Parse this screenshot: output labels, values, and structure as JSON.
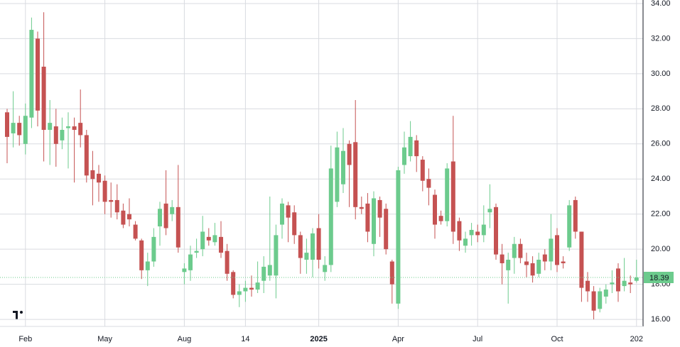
{
  "chart_data": {
    "type": "candlestick",
    "categories": [
      null,
      null,
      null,
      "Feb",
      null,
      null,
      null,
      null,
      null,
      null,
      null,
      null,
      null,
      null,
      null,
      null,
      "May",
      null,
      null,
      null,
      null,
      null,
      null,
      null,
      null,
      null,
      null,
      null,
      null,
      "Aug",
      null,
      null,
      null,
      null,
      null,
      null,
      null,
      null,
      null,
      "14",
      null,
      null,
      null,
      null,
      null,
      null,
      null,
      null,
      null,
      null,
      null,
      "2025",
      null,
      null,
      null,
      null,
      null,
      null,
      null,
      null,
      null,
      null,
      null,
      null,
      "Apr",
      null,
      null,
      null,
      null,
      null,
      null,
      null,
      null,
      null,
      null,
      null,
      null,
      "Jul",
      null,
      null,
      null,
      null,
      null,
      null,
      null,
      null,
      null,
      null,
      null,
      null,
      "Oct",
      null,
      null,
      null,
      null,
      null,
      null,
      null,
      null,
      null,
      null,
      null,
      null,
      "202"
    ],
    "open": [
      27.8,
      26.6,
      27.2,
      26.0,
      27.5,
      32.0,
      30.4,
      26.8,
      27.0,
      26.2,
      26.9,
      27.0,
      27.2,
      26.5,
      24.5,
      24.3,
      23.9,
      22.8,
      22.8,
      22.2,
      22.0,
      21.4,
      20.5,
      18.8,
      19.3,
      21.3,
      22.6,
      22.0,
      22.4,
      18.7,
      18.8,
      19.8,
      20.0,
      20.7,
      20.4,
      20.7,
      19.9,
      18.7,
      17.4,
      17.6,
      17.8,
      17.7,
      18.2,
      18.5,
      18.5,
      21.4,
      22.5,
      22.1,
      20.8,
      19.4,
      19.4,
      21.2,
      18.7,
      19.1,
      22.7,
      23.7,
      26.0,
      26.1,
      22.4,
      22.6,
      20.3,
      22.8,
      22.3,
      19.3,
      16.9,
      24.8,
      25.3,
      26.2,
      25.1,
      24.0,
      23.1,
      21.9,
      21.6,
      25.0,
      21.6,
      20.2,
      20.8,
      21.0,
      20.8,
      22.1,
      22.4,
      19.7,
      18.8,
      19.5,
      20.3,
      19.3,
      19.2,
      18.6,
      19.7,
      19.3,
      20.8,
      19.3,
      20.1,
      22.8,
      21.0,
      18.2,
      17.6,
      16.6,
      17.3,
      18.0,
      18.9,
      17.9,
      18.1,
      18.2
    ],
    "high": [
      28.0,
      29.0,
      27.6,
      28.3,
      33.2,
      32.4,
      33.5,
      28.5,
      28.0,
      27.5,
      27.8,
      27.5,
      29.1,
      26.8,
      25.6,
      24.8,
      24.2,
      23.8,
      23.7,
      22.6,
      22.9,
      21.6,
      20.6,
      19.8,
      21.2,
      22.7,
      24.5,
      22.8,
      24.8,
      19.2,
      20.2,
      20.6,
      21.9,
      21.2,
      21.5,
      21.6,
      20.3,
      18.8,
      18.0,
      18.2,
      18.5,
      19.3,
      19.6,
      23.0,
      21.4,
      22.9,
      22.7,
      22.5,
      21.0,
      20.6,
      21.2,
      22.0,
      19.6,
      25.9,
      26.7,
      26.9,
      26.2,
      28.5,
      23.0,
      23.2,
      23.3,
      23.0,
      22.6,
      19.4,
      24.7,
      26.7,
      27.3,
      26.5,
      25.3,
      24.6,
      23.4,
      22.2,
      24.9,
      27.6,
      21.8,
      21.0,
      21.5,
      21.4,
      22.5,
      23.7,
      22.6,
      20.3,
      19.8,
      20.7,
      20.6,
      19.8,
      19.6,
      19.8,
      20.0,
      22.0,
      21.2,
      19.6,
      22.8,
      23.0,
      21.0,
      18.7,
      17.9,
      17.8,
      18.0,
      18.8,
      19.2,
      19.5,
      18.5,
      19.4
    ],
    "low": [
      24.9,
      25.8,
      25.9,
      25.4,
      26.9,
      27.0,
      25.0,
      24.8,
      24.7,
      25.7,
      24.6,
      23.8,
      25.8,
      23.8,
      22.5,
      22.7,
      22.0,
      21.8,
      21.7,
      21.2,
      21.3,
      20.5,
      18.3,
      17.9,
      19.0,
      20.2,
      20.8,
      21.6,
      19.8,
      18.0,
      18.2,
      19.5,
      19.6,
      20.2,
      20.2,
      19.5,
      18.2,
      17.2,
      16.7,
      17.0,
      17.3,
      17.5,
      17.5,
      18.2,
      17.2,
      20.6,
      20.4,
      20.3,
      18.6,
      18.6,
      18.4,
      18.9,
      18.2,
      18.7,
      22.4,
      23.2,
      22.4,
      21.7,
      22.0,
      20.4,
      19.6,
      20.7,
      19.7,
      16.9,
      16.6,
      24.3,
      25.0,
      24.4,
      23.3,
      22.5,
      20.6,
      21.4,
      21.3,
      20.3,
      19.9,
      19.8,
      20.2,
      20.4,
      20.4,
      21.2,
      19.4,
      18.0,
      16.9,
      18.6,
      19.2,
      18.4,
      18.1,
      18.4,
      18.8,
      18.8,
      18.7,
      18.9,
      19.9,
      20.6,
      17.0,
      17.0,
      16.0,
      16.4,
      16.9,
      17.5,
      17.0,
      17.6,
      17.5,
      18.1
    ],
    "close": [
      26.4,
      27.2,
      26.5,
      27.6,
      32.5,
      27.9,
      26.8,
      27.2,
      26.0,
      26.8,
      27.0,
      26.8,
      26.5,
      24.2,
      24.0,
      23.8,
      22.7,
      22.7,
      22.1,
      21.4,
      21.7,
      20.6,
      18.8,
      19.3,
      20.7,
      22.3,
      21.2,
      22.4,
      20.1,
      18.9,
      19.7,
      19.9,
      21.0,
      20.5,
      20.8,
      19.8,
      18.6,
      17.4,
      17.6,
      17.8,
      17.7,
      18.1,
      19.0,
      19.1,
      20.8,
      22.6,
      21.8,
      20.8,
      19.5,
      19.8,
      20.9,
      19.4,
      19.1,
      24.6,
      25.8,
      25.6,
      24.8,
      22.4,
      22.3,
      21.0,
      22.9,
      21.8,
      20.0,
      18.0,
      24.5,
      25.8,
      26.4,
      25.3,
      23.9,
      23.5,
      21.4,
      21.6,
      24.6,
      21.0,
      20.5,
      20.6,
      21.1,
      20.8,
      21.4,
      22.3,
      19.7,
      19.2,
      19.4,
      20.3,
      19.5,
      19.1,
      18.5,
      19.4,
      19.3,
      20.6,
      19.1,
      19.2,
      22.5,
      21.0,
      17.8,
      17.6,
      16.5,
      17.6,
      17.7,
      18.1,
      17.6,
      18.2,
      18.0,
      18.39
    ],
    "up_color": "#6ccb8d",
    "down_color": "#c55252",
    "last_price": 18.39,
    "ylim": [
      15.6,
      34.2
    ],
    "yticks": [
      {
        "value": 16,
        "label": "16.00"
      },
      {
        "value": 18,
        "label": "18.00"
      },
      {
        "value": 20,
        "label": "20.00"
      },
      {
        "value": 22,
        "label": "22.00"
      },
      {
        "value": 24,
        "label": "24.00"
      },
      {
        "value": 26,
        "label": "26.00"
      },
      {
        "value": 28,
        "label": "28.00"
      },
      {
        "value": 30,
        "label": "30.00"
      },
      {
        "value": 32,
        "label": "32.00"
      },
      {
        "value": 34,
        "label": "34.00"
      }
    ],
    "grid": true
  }
}
